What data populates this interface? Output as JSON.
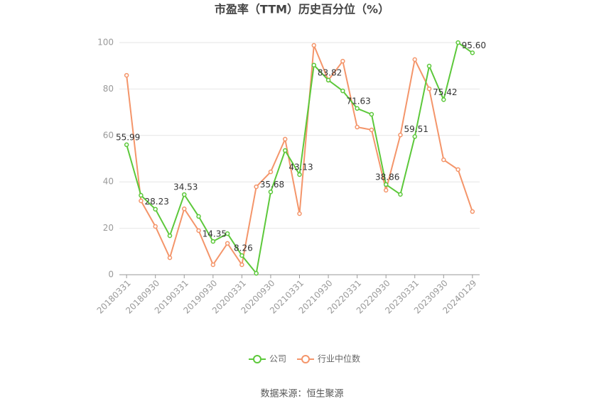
{
  "chart_data": {
    "type": "line",
    "title": "市盈率（TTM）历史百分位（%）",
    "source": "数据来源：恒生聚源",
    "categories": [
      "20180331",
      null,
      "20180930",
      null,
      "20190331",
      null,
      "20190930",
      null,
      "20200331",
      null,
      "20200930",
      null,
      "20210331",
      null,
      "20210930",
      null,
      "20220331",
      null,
      "20220930",
      null,
      "20230331",
      null,
      "20230930",
      null,
      "20240129"
    ],
    "series": [
      {
        "name": "公司",
        "color": "#5cc83a",
        "values": [
          55.99,
          34.2,
          28.23,
          16.8,
          34.53,
          25.1,
          14.35,
          17.7,
          8.26,
          0.6,
          35.68,
          53.5,
          43.13,
          90.3,
          83.82,
          79.2,
          71.63,
          69.1,
          38.86,
          34.6,
          59.51,
          89.9,
          75.42,
          100,
          95.6
        ],
        "value_labels": [
          "55.99",
          null,
          "28.23",
          null,
          "34.53",
          null,
          "14.35",
          null,
          "8.26",
          null,
          "35.68",
          null,
          "43.13",
          null,
          "83.82",
          null,
          "71.63",
          null,
          "38.86",
          null,
          "59.51",
          null,
          "75.42",
          null,
          "95.60"
        ]
      },
      {
        "name": "行业中位数",
        "color": "#f4956a",
        "values": [
          85.9,
          31.8,
          20.8,
          7.3,
          28.4,
          19.0,
          4.3,
          13.5,
          4.3,
          37.9,
          44.3,
          58.4,
          26.3,
          98.8,
          83.8,
          92.0,
          63.6,
          62.4,
          36.4,
          60.2,
          92.7,
          80.1,
          49.5,
          45.3,
          27.2
        ]
      }
    ],
    "ylim": [
      0,
      100
    ],
    "yticks": [
      0,
      20,
      40,
      60,
      80,
      100
    ],
    "grid": true
  }
}
